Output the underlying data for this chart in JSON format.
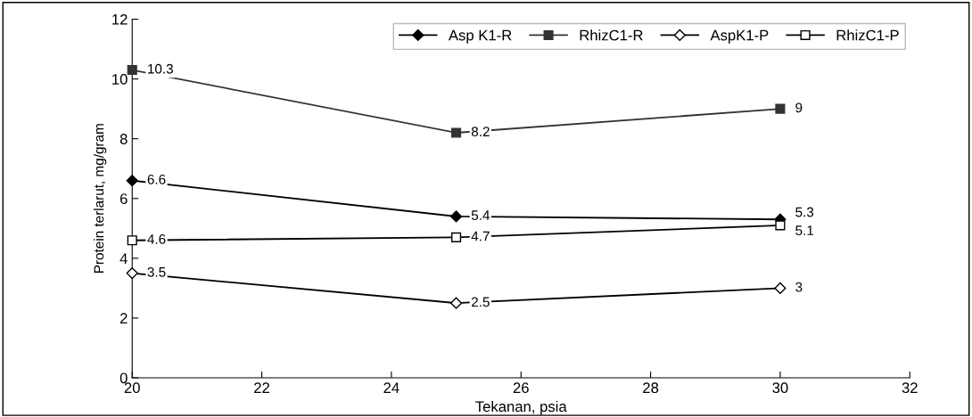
{
  "chart_data": {
    "type": "line",
    "xlabel": "Tekanan, psia",
    "ylabel": "Protein terlarut, mg/gram",
    "x": [
      20,
      25,
      30
    ],
    "xlim": [
      20,
      32
    ],
    "xticks": [
      20,
      22,
      24,
      26,
      28,
      30,
      32
    ],
    "ylim": [
      0,
      12
    ],
    "yticks": [
      0,
      2,
      4,
      6,
      8,
      10,
      12
    ],
    "grid": false,
    "legend": "top right",
    "data_labels": true,
    "series": [
      {
        "name": "Asp K1-R",
        "color": "#000000",
        "marker": "diamond",
        "values": [
          6.6,
          5.4,
          5.3
        ]
      },
      {
        "name": "RhizC1-R",
        "color": "#333333",
        "marker": "square",
        "values": [
          10.3,
          8.2,
          9
        ]
      },
      {
        "name": "AspK1-P",
        "color": "#000000",
        "marker": "diamond",
        "values": [
          3.5,
          2.5,
          3
        ]
      },
      {
        "name": "RhizC1-P",
        "color": "#000000",
        "marker": "square",
        "values": [
          4.6,
          4.7,
          5.1
        ]
      }
    ]
  }
}
